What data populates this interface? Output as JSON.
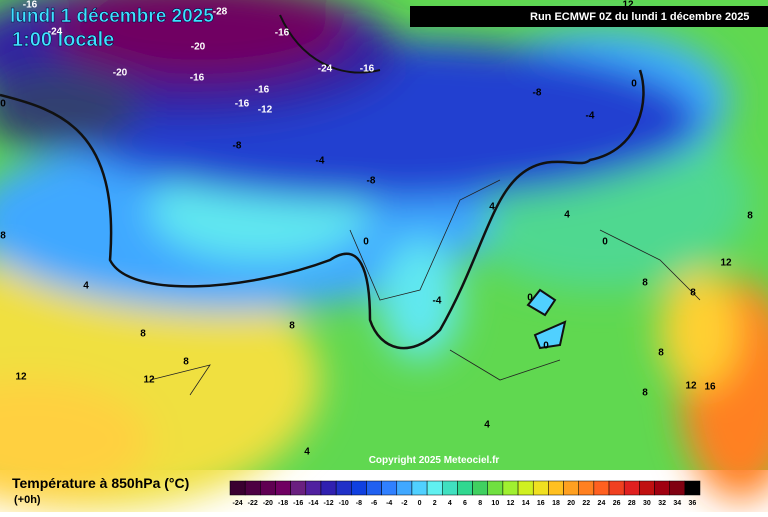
{
  "header": {
    "date": "lundi 1 décembre 2025",
    "time": "1:00 locale",
    "run": "Run ECMWF 0Z du lundi 1 décembre 2025"
  },
  "map": {
    "contour_labels": [
      -16,
      -28,
      -24,
      -20,
      -16,
      -20,
      -16,
      -24,
      -16,
      -16,
      -16,
      -12,
      -8,
      -8,
      -4,
      -4,
      -8,
      0,
      0,
      0,
      4,
      4,
      0,
      8,
      12,
      8,
      8,
      0,
      0,
      -4,
      8,
      8,
      8,
      12,
      12,
      4,
      8,
      8,
      12,
      16,
      8,
      4,
      4,
      12
    ],
    "copyright": "Copyright 2025 Meteociel.fr"
  },
  "footer": {
    "title": "Température à 850hPa (°C)",
    "step": "(+0h)"
  },
  "colorbar": {
    "ticks": [
      -24,
      -22,
      -20,
      -18,
      -16,
      -14,
      -12,
      -10,
      -8,
      -6,
      -4,
      -2,
      0,
      2,
      4,
      6,
      8,
      10,
      12,
      14,
      16,
      18,
      20,
      22,
      24,
      26,
      28,
      30,
      32,
      34,
      36
    ],
    "colors": [
      "#3a0030",
      "#4d0042",
      "#600052",
      "#700062",
      "#6a2080",
      "#5020a0",
      "#3020b0",
      "#2030c8",
      "#1040e0",
      "#2060f0",
      "#3080ff",
      "#40a8ff",
      "#50d0ff",
      "#60f0f0",
      "#40e0c0",
      "#30d890",
      "#40d060",
      "#70e040",
      "#a0f030",
      "#d0f020",
      "#f0e020",
      "#ffc020",
      "#ffa020",
      "#ff8020",
      "#ff6020",
      "#f04020",
      "#e02020",
      "#c01010",
      "#a00010",
      "#800010",
      "#000000"
    ]
  }
}
